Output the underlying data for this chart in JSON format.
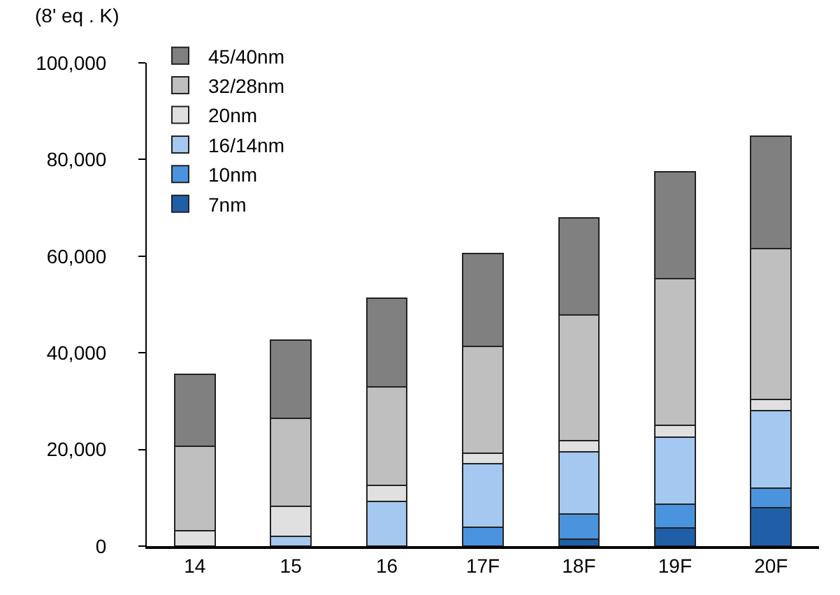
{
  "chart_data": {
    "type": "bar",
    "stacked": true,
    "ylabel": "(8' eq . K)",
    "categories": [
      "14",
      "15",
      "16",
      "17F",
      "18F",
      "19F",
      "20F"
    ],
    "series": [
      {
        "name": "7nm",
        "color": "#1f5fa8",
        "values": [
          0,
          0,
          0,
          0,
          1400,
          3700,
          8000
        ]
      },
      {
        "name": "10nm",
        "color": "#4a94de",
        "values": [
          0,
          0,
          0,
          3900,
          5200,
          4900,
          4000
        ]
      },
      {
        "name": "16/14nm",
        "color": "#a4c8ef",
        "values": [
          0,
          2000,
          9200,
          13100,
          12900,
          14000,
          16100
        ]
      },
      {
        "name": "20nm",
        "color": "#e0e0e0",
        "values": [
          3200,
          6300,
          3400,
          2200,
          2300,
          2400,
          2300
        ]
      },
      {
        "name": "32/28nm",
        "color": "#bfbfbf",
        "values": [
          17400,
          18100,
          20300,
          22100,
          26100,
          30300,
          31200
        ]
      },
      {
        "name": "45/40nm",
        "color": "#808080",
        "values": [
          14900,
          16300,
          18400,
          19300,
          20000,
          22200,
          23200
        ]
      }
    ],
    "ylim": [
      0,
      100000
    ],
    "yticks": [
      0,
      {
        "value": 20000,
        "label": "20,000"
      },
      {
        "value": 40000,
        "label": "40,000"
      },
      {
        "value": 60000,
        "label": "60,000"
      },
      {
        "value": 80000,
        "label": "80,000"
      },
      {
        "value": 100000,
        "label": "100,000"
      }
    ],
    "grid": false,
    "legend": "top"
  }
}
